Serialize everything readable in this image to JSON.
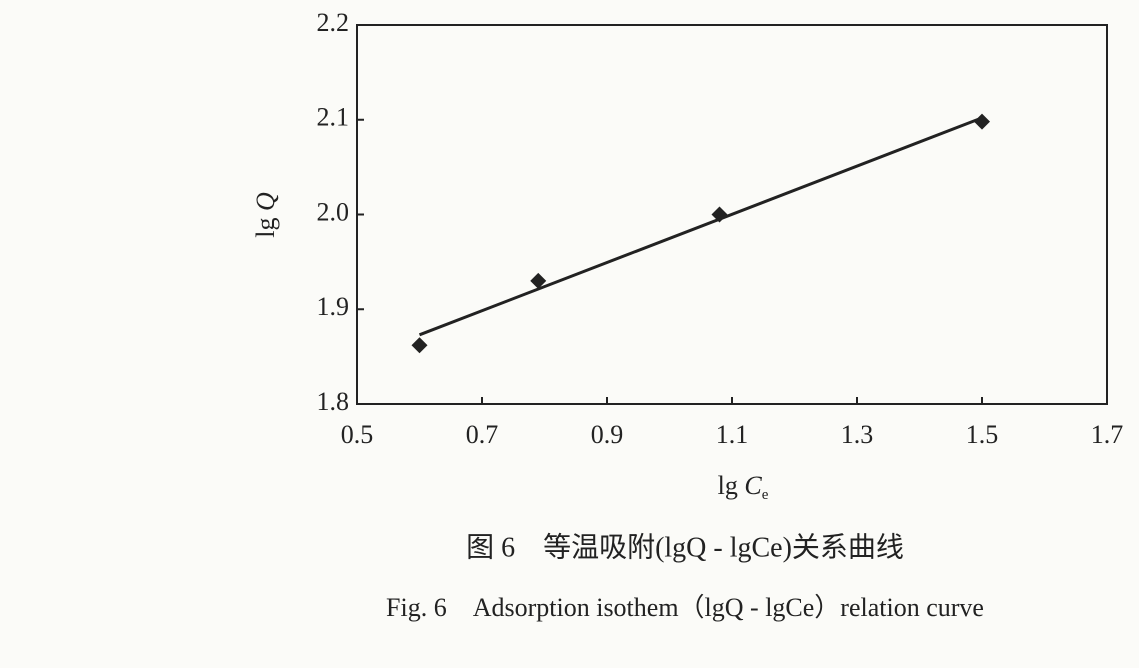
{
  "chart_data": {
    "type": "scatter",
    "x_label": [
      "lg",
      "C",
      "e"
    ],
    "y_label": [
      "lg",
      "Q"
    ],
    "captions": [
      "图 6　等温吸附(lgQ - lgCe)关系曲线",
      "Fig. 6　Adsorption isothem（lgQ - lgCe）relation curve"
    ],
    "points": {
      "x": [
        0.6,
        0.79,
        1.08,
        1.5
      ],
      "y": [
        1.862,
        1.93,
        2.0,
        2.098
      ]
    },
    "fit_line": {
      "x": [
        0.6,
        1.5
      ],
      "y": [
        1.873,
        2.102
      ]
    },
    "color": "#222222",
    "xlim": [
      0.5,
      1.7
    ],
    "xticks": [
      0.5,
      0.7,
      0.9,
      1.1,
      1.3,
      1.5,
      1.7
    ],
    "ylim": [
      1.8,
      2.2
    ],
    "yticks": [
      1.8,
      1.9,
      {
        "value": 2,
        "label": "2.0"
      },
      2.1,
      2.2
    ]
  }
}
